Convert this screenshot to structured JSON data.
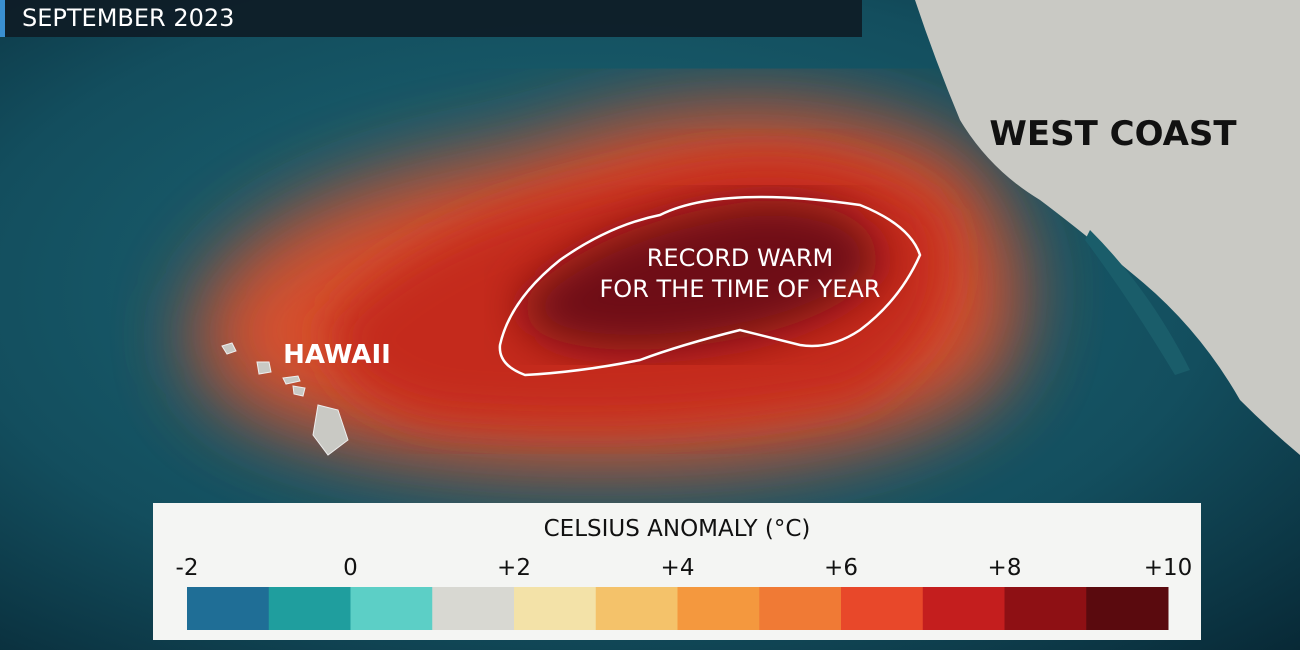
{
  "header": {
    "title": "SEPTEMBER 2023"
  },
  "labels": {
    "west_coast": "WEST COAST",
    "hawaii": "HAWAII",
    "record_line1": "RECORD WARM",
    "record_line2": "FOR THE TIME OF YEAR"
  },
  "scale": {
    "title": "CELSIUS ANOMALY (°C)",
    "range": [
      -2,
      10
    ],
    "ticks": [
      -2,
      0,
      {
        "value": 2,
        "label": "+2"
      },
      {
        "value": 4,
        "label": "+4"
      },
      {
        "value": 6,
        "label": "+6"
      },
      {
        "value": 8,
        "label": "+8"
      },
      {
        "value": 10,
        "label": "+10"
      }
    ],
    "colors": [
      "#1f6e96",
      "#1f9e9e",
      "#5ccfc6",
      "#d8d8d2",
      "#f3e2a8",
      "#f4c26a",
      "#f4983e",
      "#f07a35",
      "#e8482a",
      "#c41e1e",
      "#8e1014",
      "#5a0a0e"
    ]
  }
}
